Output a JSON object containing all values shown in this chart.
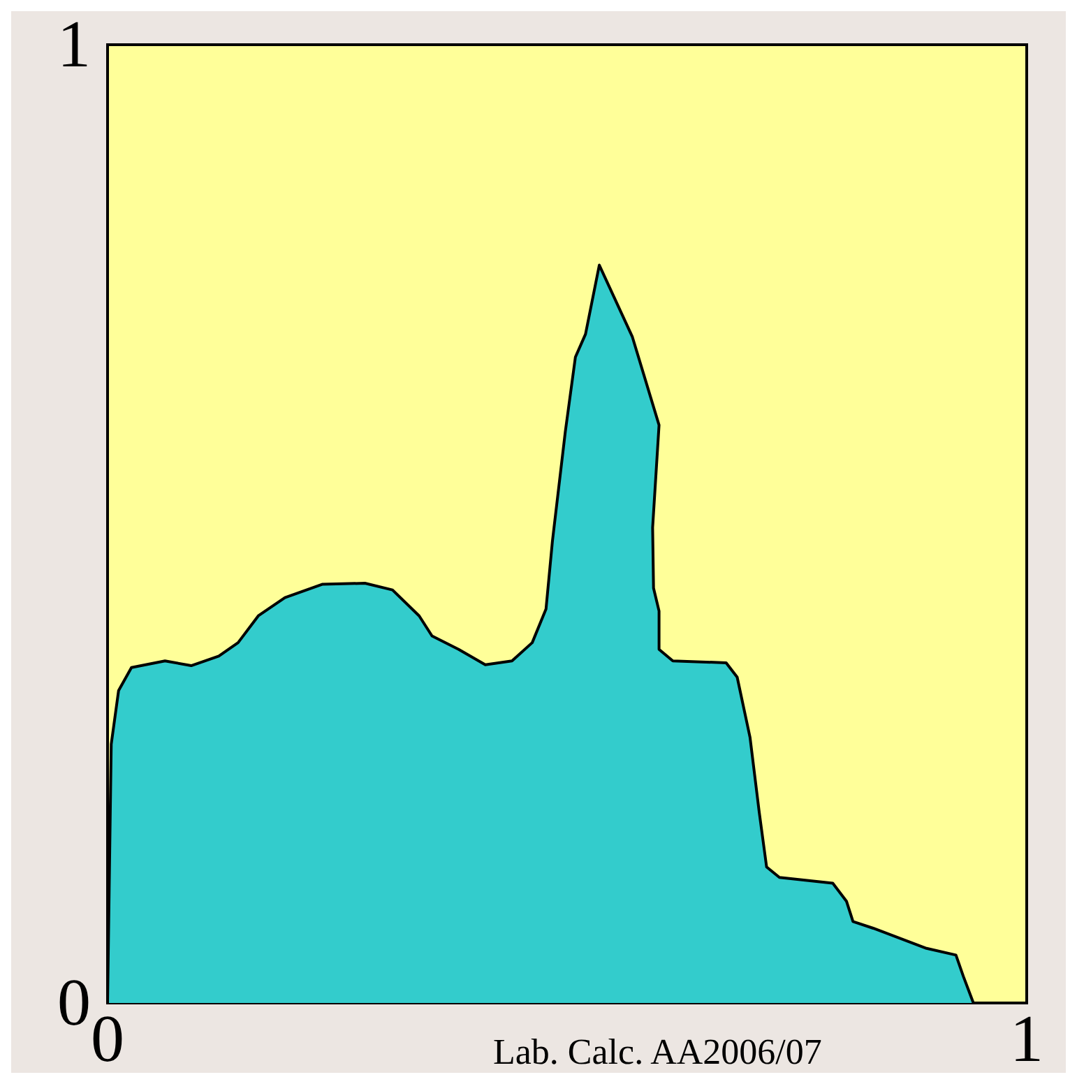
{
  "chart_data": {
    "type": "area",
    "x": [
      0,
      0.004,
      0.012,
      0.026,
      0.0625,
      0.091,
      0.121,
      0.142,
      0.164,
      0.193,
      0.234,
      0.28,
      0.31,
      0.339,
      0.353,
      0.382,
      0.411,
      0.44,
      0.462,
      0.477,
      0.484,
      0.498,
      0.509,
      0.52,
      0.535,
      0.571,
      0.6,
      0.593,
      0.594,
      0.6,
      0.6,
      0.615,
      0.673,
      0.685,
      0.699,
      0.709,
      0.717,
      0.731,
      0.789,
      0.804,
      0.811,
      0.833,
      0.891,
      0.923,
      0.931,
      0.942
    ],
    "series": [
      {
        "color": "#33cccc",
        "values": [
          0,
          0.27,
          0.326,
          0.35,
          0.357,
          0.352,
          0.362,
          0.376,
          0.404,
          0.423,
          0.437,
          0.438,
          0.431,
          0.404,
          0.383,
          0.369,
          0.353,
          0.357,
          0.376,
          0.411,
          0.482,
          0.596,
          0.674,
          0.698,
          0.77,
          0.695,
          0.603,
          0.496,
          0.433,
          0.409,
          0.369,
          0.357,
          0.355,
          0.34,
          0.277,
          0.199,
          0.142,
          0.131,
          0.125,
          0.106,
          0.085,
          0.078,
          0.057,
          0.05,
          0.028,
          0
        ]
      }
    ],
    "xlim": [
      0,
      1
    ],
    "ylim": [
      0,
      1
    ],
    "xticks": [
      0,
      1
    ],
    "yticks": [
      0,
      1
    ],
    "grid": false,
    "annotations": [
      "Lab. Calc. AA2006/07"
    ]
  }
}
